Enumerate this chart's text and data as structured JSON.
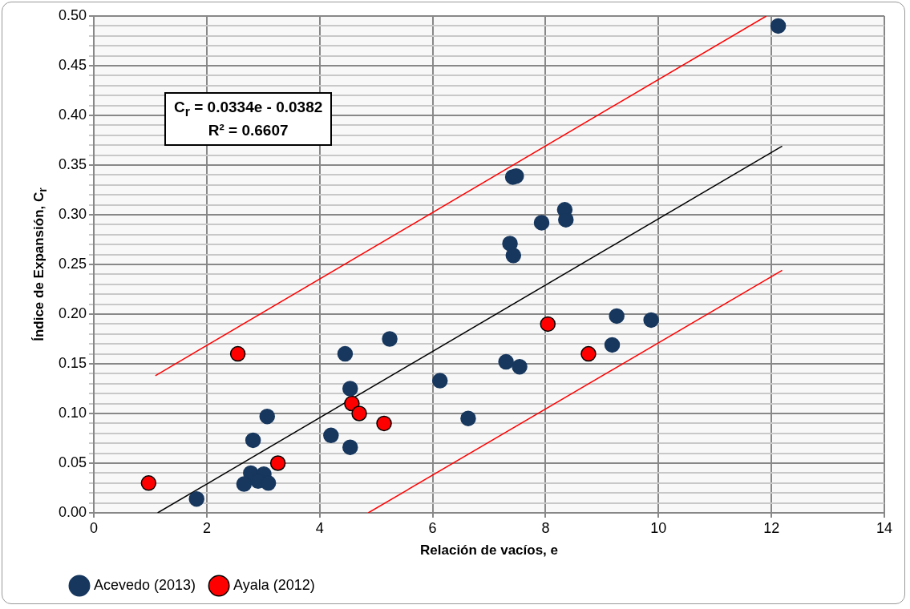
{
  "chart_data": {
    "type": "scatter",
    "xlabel": "Relación de vacíos, e",
    "ylabel": "Índice de Expansión, C$_{r}$",
    "annotations": [
      "C$_{r}$ = 0.0334e - 0.0382",
      "R² = 0.6607"
    ],
    "xlim": [
      0,
      14
    ],
    "xticks": [
      0,
      2,
      4,
      6,
      8,
      10,
      12,
      14
    ],
    "ylim": [
      0,
      0.5
    ],
    "yticks": [
      {
        "value": 0,
        "label": "0.00"
      },
      {
        "value": 0.01,
        "label": null
      },
      {
        "value": 0.02,
        "label": null
      },
      {
        "value": 0.03,
        "label": null
      },
      {
        "value": 0.04,
        "label": null
      },
      {
        "value": 0.05,
        "label": "0.05"
      },
      {
        "value": 0.06,
        "label": null
      },
      {
        "value": 0.07,
        "label": null
      },
      {
        "value": 0.08,
        "label": null
      },
      {
        "value": 0.09,
        "label": null
      },
      {
        "value": 0.1,
        "label": "0.10"
      },
      {
        "value": 0.11,
        "label": null
      },
      {
        "value": 0.12,
        "label": null
      },
      {
        "value": 0.13,
        "label": null
      },
      {
        "value": 0.14,
        "label": null
      },
      {
        "value": 0.15,
        "label": "0.15"
      },
      {
        "value": 0.16,
        "label": null
      },
      {
        "value": 0.17,
        "label": null
      },
      {
        "value": 0.18,
        "label": null
      },
      {
        "value": 0.19,
        "label": null
      },
      {
        "value": 0.2,
        "label": "0.20"
      },
      {
        "value": 0.21,
        "label": null
      },
      {
        "value": 0.22,
        "label": null
      },
      {
        "value": 0.23,
        "label": null
      },
      {
        "value": 0.24,
        "label": null
      },
      {
        "value": 0.25,
        "label": "0.25"
      },
      {
        "value": 0.26,
        "label": null
      },
      {
        "value": 0.27,
        "label": null
      },
      {
        "value": 0.28,
        "label": null
      },
      {
        "value": 0.29,
        "label": null
      },
      {
        "value": 0.3,
        "label": "0.30"
      },
      {
        "value": 0.31,
        "label": null
      },
      {
        "value": 0.32,
        "label": null
      },
      {
        "value": 0.33,
        "label": null
      },
      {
        "value": 0.34,
        "label": null
      },
      {
        "value": 0.35,
        "label": "0.35"
      },
      {
        "value": 0.36,
        "label": null
      },
      {
        "value": 0.37,
        "label": null
      },
      {
        "value": 0.38,
        "label": null
      },
      {
        "value": 0.39,
        "label": null
      },
      {
        "value": 0.4,
        "label": "0.40"
      },
      {
        "value": 0.41,
        "label": null
      },
      {
        "value": 0.42,
        "label": null
      },
      {
        "value": 0.43,
        "label": null
      },
      {
        "value": 0.44,
        "label": null
      },
      {
        "value": 0.45,
        "label": "0.45"
      },
      {
        "value": 0.46,
        "label": null
      },
      {
        "value": 0.47,
        "label": null
      },
      {
        "value": 0.48,
        "label": null
      },
      {
        "value": 0.49,
        "label": null
      },
      {
        "value": 0.5,
        "label": "0.50"
      }
    ],
    "grid": true,
    "legend": "bottom left",
    "marker": "circle",
    "series": [
      {
        "name": "Acevedo (2013)",
        "color": "#17375e",
        "x": [
          12.12,
          7.42,
          7.48,
          8.34,
          8.36,
          7.93,
          7.37,
          7.43,
          9.26,
          9.87,
          9.18,
          5.24,
          4.45,
          6.13,
          7.3,
          7.54,
          4.54,
          3.07,
          6.63,
          2.82,
          4.2,
          4.54,
          2.78,
          3.01,
          2.66,
          2.91,
          3.09,
          1.82
        ],
        "values": [
          0.49,
          0.338,
          0.339,
          0.305,
          0.295,
          0.292,
          0.271,
          0.259,
          0.198,
          0.194,
          0.169,
          0.175,
          0.16,
          0.133,
          0.152,
          0.147,
          0.125,
          0.097,
          0.095,
          0.073,
          0.078,
          0.066,
          0.04,
          0.039,
          0.029,
          0.032,
          0.03,
          0.014
        ]
      },
      {
        "name": "Ayala (2012)",
        "color": "#ff0000",
        "x": [
          0.97,
          2.55,
          3.26,
          4.57,
          4.7,
          5.14,
          8.04,
          8.76
        ],
        "values": [
          0.03,
          0.16,
          0.05,
          0.11,
          0.1,
          0.09,
          0.19,
          0.16
        ]
      },
      {
        "type": "line",
        "color": "#000000",
        "marker": "none",
        "x": [
          1.13,
          12.19
        ],
        "values": [
          0,
          0.369
        ]
      },
      {
        "type": "line",
        "color": "#ff0000",
        "marker": "none",
        "x": [
          1.09,
          11.91
        ],
        "values": [
          0.138,
          0.5
        ]
      },
      {
        "type": "line",
        "color": "#ff0000",
        "marker": "none",
        "x": [
          4.86,
          12.19
        ],
        "values": [
          0,
          0.244
        ]
      }
    ]
  }
}
